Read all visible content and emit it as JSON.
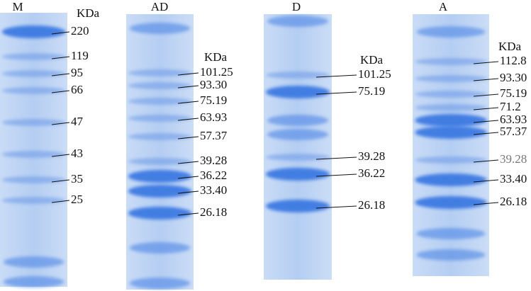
{
  "lanes": [
    {
      "label": "M",
      "unit": "KDa",
      "markers": [
        "220",
        "119",
        "95",
        "66",
        "47",
        "43",
        "35",
        "25"
      ]
    },
    {
      "label": "AD",
      "unit": "KDa",
      "markers": [
        "101.25",
        "93.30",
        "75.19",
        "63.93",
        "57.37",
        "39.28",
        "36.22",
        "33.40",
        "26.18"
      ]
    },
    {
      "label": "D",
      "unit": "KDa",
      "markers": [
        "101.25",
        "75.19",
        "39.28",
        "36.22",
        "26.18"
      ]
    },
    {
      "label": "A",
      "unit": "KDa",
      "markers": [
        "112.8",
        "93.30",
        "75.19",
        "71.2",
        "63.93",
        "57.37",
        "39.28",
        "33.40",
        "26.18"
      ]
    }
  ]
}
